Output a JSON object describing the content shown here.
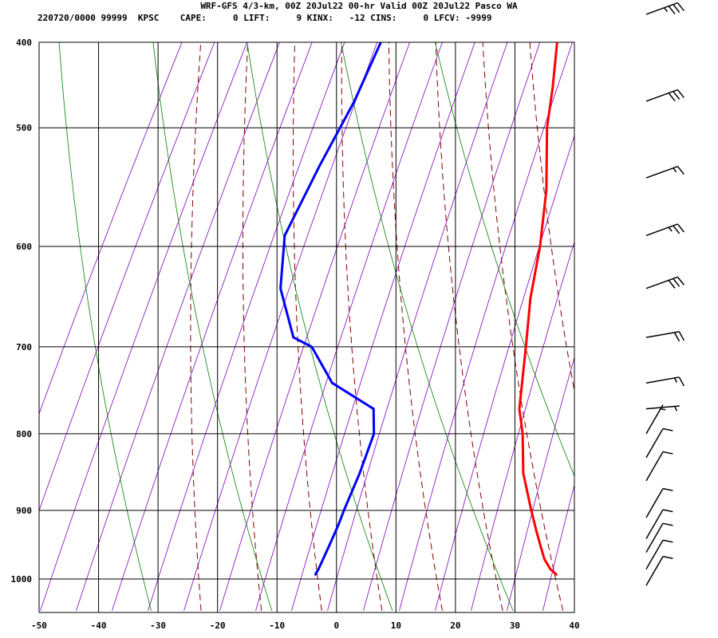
{
  "header": {
    "line1": "WRF-GFS 4/3-km, 00Z 20Jul22 00-hr Valid 00Z 20Jul22 Pasco WA",
    "line2": "220720/0000 99999  KPSC    CAPE:     0 LIFT:     9 KINX:   -12 CINS:     0 LFCV: -9999"
  },
  "chart_data": {
    "type": "line",
    "xlabel": "",
    "ylabel": "",
    "xlim": [
      -50,
      40
    ],
    "ylim": [
      1040,
      400
    ],
    "x_ticks": [
      "-50",
      "-40",
      "-30",
      "-20",
      "-10",
      "0",
      "10",
      "20",
      "30",
      "40"
    ],
    "y_ticks": [
      "400",
      "500",
      "600",
      "700",
      "800",
      "900",
      "1000"
    ],
    "grid": true,
    "series": [
      {
        "name": "",
        "color": "#ff0000",
        "points": [
          {
            "p": 993,
            "t": 36.5
          },
          {
            "p": 985,
            "t": 35
          },
          {
            "p": 970,
            "t": 33
          },
          {
            "p": 950,
            "t": 31
          },
          {
            "p": 930,
            "t": 29
          },
          {
            "p": 900,
            "t": 26
          },
          {
            "p": 850,
            "t": 21
          },
          {
            "p": 800,
            "t": 17
          },
          {
            "p": 770,
            "t": 14
          },
          {
            "p": 700,
            "t": 9
          },
          {
            "p": 650,
            "t": 5
          },
          {
            "p": 600,
            "t": 1.5
          },
          {
            "p": 550,
            "t": -3
          },
          {
            "p": 500,
            "t": -9
          },
          {
            "p": 470,
            "t": -12
          },
          {
            "p": 420,
            "t": -18
          }
        ]
      },
      {
        "name": "",
        "color": "#0000ff",
        "points": [
          {
            "p": 993,
            "t": -4
          },
          {
            "p": 985,
            "t": -4
          },
          {
            "p": 950,
            "t": -4.5
          },
          {
            "p": 920,
            "t": -5
          },
          {
            "p": 900,
            "t": -5.5
          },
          {
            "p": 850,
            "t": -6.5
          },
          {
            "p": 800,
            "t": -8
          },
          {
            "p": 770,
            "t": -10.5
          },
          {
            "p": 740,
            "t": -20
          },
          {
            "p": 700,
            "t": -27
          },
          {
            "p": 690,
            "t": -31
          },
          {
            "p": 640,
            "t": -38
          },
          {
            "p": 590,
            "t": -42.5
          },
          {
            "p": 530,
            "t": -43.5
          },
          {
            "p": 480,
            "t": -44
          },
          {
            "p": 420,
            "t": -46
          }
        ]
      }
    ],
    "wind_barbs": [
      {
        "p": 420,
        "speed_kt": 35,
        "dir_deg": 250
      },
      {
        "p": 480,
        "speed_kt": 30,
        "dir_deg": 250
      },
      {
        "p": 540,
        "speed_kt": 15,
        "dir_deg": 250
      },
      {
        "p": 590,
        "speed_kt": 25,
        "dir_deg": 250
      },
      {
        "p": 640,
        "speed_kt": 30,
        "dir_deg": 250
      },
      {
        "p": 690,
        "speed_kt": 20,
        "dir_deg": 260
      },
      {
        "p": 740,
        "speed_kt": 15,
        "dir_deg": 260
      },
      {
        "p": 770,
        "speed_kt": 5,
        "dir_deg": 265
      },
      {
        "p": 800,
        "speed_kt": 5,
        "dir_deg": 210
      },
      {
        "p": 830,
        "speed_kt": 10,
        "dir_deg": 210
      },
      {
        "p": 860,
        "speed_kt": 10,
        "dir_deg": 210
      },
      {
        "p": 910,
        "speed_kt": 10,
        "dir_deg": 210
      },
      {
        "p": 940,
        "speed_kt": 10,
        "dir_deg": 210
      },
      {
        "p": 960,
        "speed_kt": 10,
        "dir_deg": 210
      },
      {
        "p": 985,
        "speed_kt": 10,
        "dir_deg": 210
      },
      {
        "p": 1010,
        "speed_kt": 10,
        "dir_deg": 210
      }
    ],
    "background_lines": {
      "dry_adiabats": {
        "color": "#800000",
        "style": "dashed"
      },
      "moist_adiabats": {
        "color": "#8000c0",
        "style": "solid"
      },
      "mixing_ratio": {
        "color": "#008000",
        "style": "solid"
      }
    }
  }
}
